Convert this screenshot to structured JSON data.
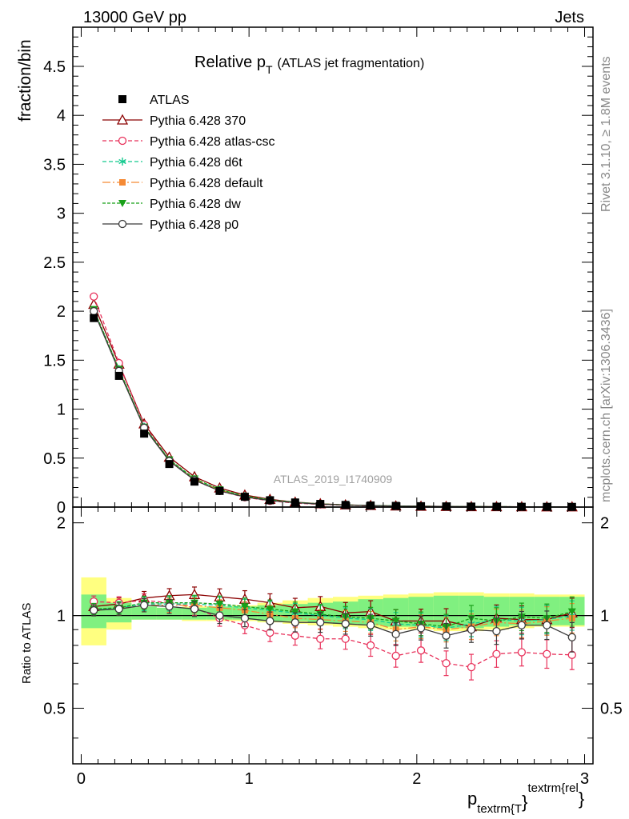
{
  "header": {
    "energy": "13000 GeV pp",
    "category": "Jets",
    "side_rivet": "Rivet 3.1.10, ≥ 1.8M events",
    "side_mcplots": "mcplots.cern.ch [arXiv:1306.3436]"
  },
  "chart_data": {
    "type": "line",
    "title_main": "Relative p",
    "title_sub": "T",
    "title_rest": "(ATLAS jet fragmentation)",
    "analysis_id": "ATLAS_2019_I1740909",
    "ylabel": "fraction/bin",
    "ratio_ylabel": "Ratio to ATLAS",
    "xlabel_main": "p",
    "xlabel_sub": "textrm{T",
    "xlabel_brace": "}",
    "xlabel_sup": "textrm{rel",
    "xlabel_end": "}",
    "xlim": [
      -0.05,
      3.05
    ],
    "ylim": [
      0,
      4.9
    ],
    "ratio_ylim": [
      0.33,
      2.25
    ],
    "x_ticks": [
      "0",
      "1",
      "2",
      "3"
    ],
    "y_ticks": [
      "0",
      "0.5",
      "1",
      "1.5",
      "2",
      "2.5",
      "3",
      "3.5",
      "4",
      "4.5"
    ],
    "ratio_y_ticks": [
      "0.5",
      "1",
      "2"
    ],
    "x": [
      0.075,
      0.225,
      0.375,
      0.525,
      0.675,
      0.825,
      0.975,
      1.125,
      1.275,
      1.425,
      1.575,
      1.725,
      1.875,
      2.025,
      2.175,
      2.325,
      2.475,
      2.625,
      2.775,
      2.925
    ],
    "data": {
      "name": "ATLAS",
      "values": [
        1.93,
        1.34,
        0.75,
        0.44,
        0.26,
        0.165,
        0.105,
        0.07,
        0.047,
        0.032,
        0.022,
        0.016,
        0.012,
        0.009,
        0.007,
        0.005,
        0.004,
        0.003,
        0.0025,
        0.002
      ]
    },
    "band_stat_ratio": [
      [
        0.91,
        1.17
      ],
      [
        0.95,
        1.1
      ],
      [
        0.97,
        1.07
      ],
      [
        0.97,
        1.06
      ],
      [
        0.97,
        1.06
      ],
      [
        0.97,
        1.07
      ],
      [
        0.97,
        1.07
      ],
      [
        0.96,
        1.08
      ],
      [
        0.96,
        1.09
      ],
      [
        0.95,
        1.1
      ],
      [
        0.94,
        1.11
      ],
      [
        0.93,
        1.13
      ],
      [
        0.92,
        1.14
      ],
      [
        0.92,
        1.15
      ],
      [
        0.91,
        1.16
      ],
      [
        0.91,
        1.16
      ],
      [
        0.92,
        1.15
      ],
      [
        0.93,
        1.15
      ],
      [
        0.93,
        1.15
      ],
      [
        0.93,
        1.15
      ]
    ],
    "band_total_ratio": [
      [
        0.8,
        1.33
      ],
      [
        0.9,
        1.14
      ],
      [
        0.97,
        1.07
      ],
      [
        0.97,
        1.06
      ],
      [
        0.96,
        1.07
      ],
      [
        0.96,
        1.07
      ],
      [
        0.96,
        1.08
      ],
      [
        0.95,
        1.1
      ],
      [
        0.94,
        1.12
      ],
      [
        0.93,
        1.14
      ],
      [
        0.92,
        1.15
      ],
      [
        0.91,
        1.16
      ],
      [
        0.9,
        1.17
      ],
      [
        0.9,
        1.18
      ],
      [
        0.89,
        1.19
      ],
      [
        0.89,
        1.19
      ],
      [
        0.9,
        1.18
      ],
      [
        0.91,
        1.18
      ],
      [
        0.92,
        1.17
      ],
      [
        0.92,
        1.17
      ]
    ],
    "series": [
      {
        "name": "Pythia 6.428 370",
        "color": "#8b0000",
        "dash": "",
        "marker": "triangle-open",
        "values": [
          2.07,
          1.46,
          0.85,
          0.51,
          0.31,
          0.195,
          0.123,
          0.079,
          0.05,
          0.034,
          0.0225,
          0.0165,
          0.0115,
          0.0086,
          0.0067,
          0.0046,
          0.0039,
          0.0029,
          0.0024,
          0.002
        ],
        "ratio": [
          1.07,
          1.09,
          1.14,
          1.16,
          1.17,
          1.15,
          1.13,
          1.1,
          1.06,
          1.07,
          1.02,
          1.03,
          0.96,
          0.96,
          0.96,
          0.92,
          0.98,
          0.97,
          0.97,
          1.02
        ]
      },
      {
        "name": "Pythia 6.428 atlas-csc",
        "color": "#e8305a",
        "dash": "5,3",
        "marker": "circle-open",
        "values": [
          2.15,
          1.47,
          0.84,
          0.48,
          0.275,
          0.165,
          0.1,
          0.063,
          0.041,
          0.027,
          0.0187,
          0.0128,
          0.0089,
          0.0069,
          0.0049,
          0.0034,
          0.003,
          0.0023,
          0.0019,
          0.0015
        ],
        "ratio": [
          1.11,
          1.1,
          1.12,
          1.1,
          1.06,
          0.98,
          0.93,
          0.88,
          0.86,
          0.84,
          0.84,
          0.8,
          0.74,
          0.77,
          0.7,
          0.68,
          0.75,
          0.76,
          0.75,
          0.745
        ]
      },
      {
        "name": "Pythia 6.428 d6t",
        "color": "#13c98e",
        "dash": "5,3",
        "marker": "asterisk",
        "values": [
          2.01,
          1.41,
          0.82,
          0.48,
          0.285,
          0.178,
          0.111,
          0.073,
          0.048,
          0.032,
          0.0215,
          0.0155,
          0.0113,
          0.0085,
          0.0064,
          0.0047,
          0.0039,
          0.0029,
          0.0024,
          0.002
        ],
        "ratio": [
          1.04,
          1.06,
          1.09,
          1.09,
          1.09,
          1.08,
          1.06,
          1.04,
          1.02,
          1.0,
          0.98,
          0.97,
          0.94,
          0.93,
          0.91,
          0.94,
          0.97,
          0.96,
          0.97,
          1.0
        ]
      },
      {
        "name": "Pythia 6.428 default",
        "color": "#f58a35",
        "dash": "10,3,2,3",
        "marker": "square-filled",
        "values": [
          2.0,
          1.4,
          0.81,
          0.475,
          0.28,
          0.175,
          0.109,
          0.071,
          0.046,
          0.031,
          0.0211,
          0.0152,
          0.0108,
          0.0083,
          0.0063,
          0.0046,
          0.0038,
          0.0028,
          0.0024,
          0.0019
        ],
        "ratio": [
          1.04,
          1.05,
          1.08,
          1.08,
          1.08,
          1.06,
          1.04,
          1.01,
          0.98,
          0.97,
          0.96,
          0.95,
          0.9,
          0.92,
          0.9,
          0.92,
          0.95,
          0.94,
          0.96,
          0.98
        ]
      },
      {
        "name": "Pythia 6.428 dw",
        "color": "#18a018",
        "dash": "4,2",
        "marker": "triangle-down-filled",
        "values": [
          2.02,
          1.41,
          0.82,
          0.485,
          0.29,
          0.18,
          0.112,
          0.074,
          0.048,
          0.032,
          0.0216,
          0.0157,
          0.0115,
          0.0086,
          0.0065,
          0.0048,
          0.0039,
          0.0029,
          0.0025,
          0.0021
        ],
        "ratio": [
          1.05,
          1.06,
          1.1,
          1.1,
          1.1,
          1.09,
          1.07,
          1.05,
          1.03,
          1.01,
          0.99,
          0.98,
          0.96,
          0.94,
          0.92,
          0.98,
          0.96,
          0.99,
          0.98,
          1.03
        ]
      },
      {
        "name": "Pythia 6.428 p0",
        "color": "#3a3a3a",
        "dash": "",
        "marker": "circle-open",
        "values": [
          2.0,
          1.39,
          0.81,
          0.47,
          0.275,
          0.165,
          0.103,
          0.067,
          0.045,
          0.03,
          0.0205,
          0.015,
          0.0105,
          0.0082,
          0.0061,
          0.0045,
          0.0036,
          0.0028,
          0.0023,
          0.0017
        ],
        "ratio": [
          1.04,
          1.05,
          1.08,
          1.07,
          1.05,
          1.0,
          0.98,
          0.96,
          0.95,
          0.95,
          0.94,
          0.93,
          0.87,
          0.91,
          0.86,
          0.9,
          0.89,
          0.93,
          0.93,
          0.85
        ]
      }
    ]
  }
}
